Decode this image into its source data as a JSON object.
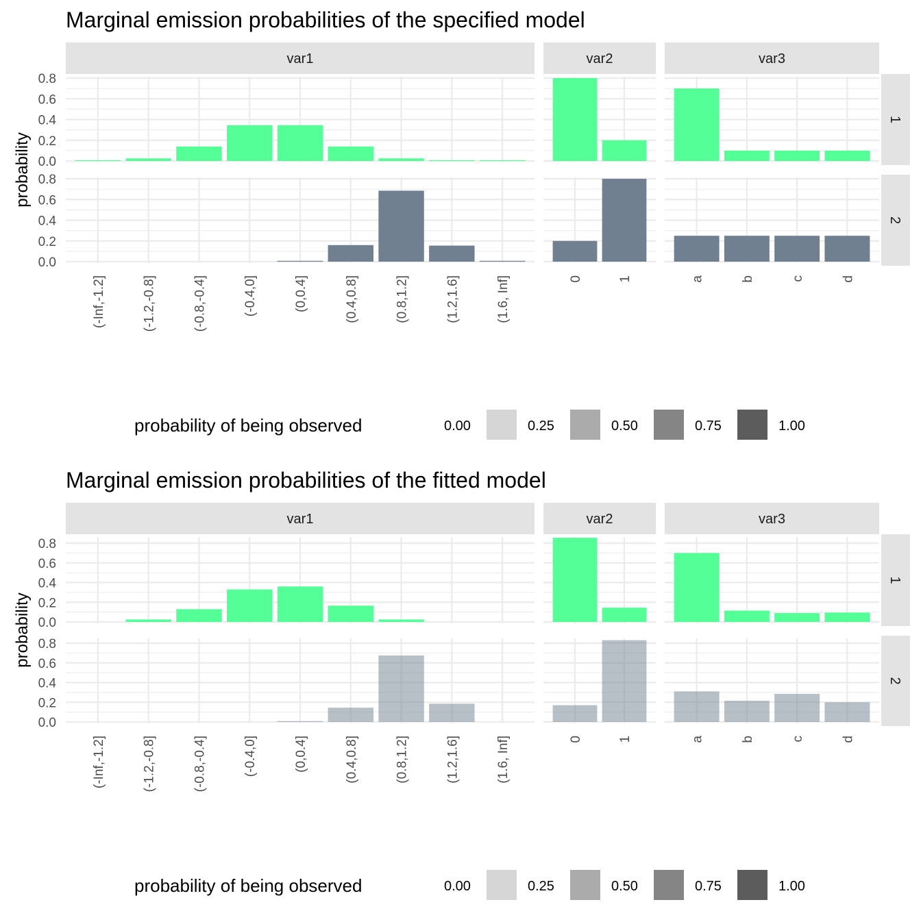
{
  "charts": [
    {
      "title": "Marginal emission probabilities of the specified model",
      "ylabel": "probability",
      "facet_cols": [
        "var1",
        "var2",
        "var3"
      ],
      "facet_rows": [
        "1",
        "2"
      ],
      "legend": {
        "title": "probability of being observed",
        "entries": [
          {
            "label": "0.00",
            "color": "#ffffff"
          },
          {
            "label": "0.25",
            "color": "#d6d6d6"
          },
          {
            "label": "0.50",
            "color": "#ababab"
          },
          {
            "label": "0.75",
            "color": "#858585"
          },
          {
            "label": "1.00",
            "color": "#5c5c5c"
          }
        ]
      }
    },
    {
      "title": "Marginal emission probabilities of the fitted model",
      "ylabel": "probability",
      "facet_cols": [
        "var1",
        "var2",
        "var3"
      ],
      "facet_rows": [
        "1",
        "2"
      ],
      "legend": {
        "title": "probability of being observed",
        "entries": [
          {
            "label": "0.00",
            "color": "#ffffff"
          },
          {
            "label": "0.25",
            "color": "#d6d6d6"
          },
          {
            "label": "0.50",
            "color": "#ababab"
          },
          {
            "label": "0.75",
            "color": "#858585"
          },
          {
            "label": "1.00",
            "color": "#5c5c5c"
          }
        ]
      }
    }
  ],
  "chart_data": [
    {
      "type": "bar",
      "title": "Marginal emission probabilities of the specified model",
      "ylabel": "probability",
      "xlabel": "",
      "ylim": [
        0,
        0.8
      ],
      "y_ticks": [
        "0.0",
        "0.2",
        "0.4",
        "0.6",
        "0.8"
      ],
      "colors": {
        "state_1": "#54ff98",
        "state_2": "#708090"
      },
      "bar_opacity": {
        "state_1": 1.0,
        "state_2": 1.0
      },
      "variables": [
        {
          "name": "var1",
          "categories": [
            "(-Inf,-1.2]",
            "(-1.2,-0.8]",
            "(-0.8,-0.4]",
            "(-0.4,0]",
            "(0,0.4]",
            "(0.4,0.8]",
            "(0.8,1.2]",
            "(1.2,1.6]",
            "(1.6, Inf]"
          ],
          "series": [
            {
              "state": "1",
              "values": [
                0.005,
                0.025,
                0.14,
                0.345,
                0.345,
                0.14,
                0.025,
                0.005,
                0.003
              ]
            },
            {
              "state": "2",
              "values": [
                0.0,
                0.0,
                0.0,
                0.0,
                0.005,
                0.16,
                0.685,
                0.155,
                0.005
              ]
            }
          ]
        },
        {
          "name": "var2",
          "categories": [
            "0",
            "1"
          ],
          "series": [
            {
              "state": "1",
              "values": [
                0.8,
                0.2
              ]
            },
            {
              "state": "2",
              "values": [
                0.2,
                0.8
              ]
            }
          ]
        },
        {
          "name": "var3",
          "categories": [
            "a",
            "b",
            "c",
            "d"
          ],
          "series": [
            {
              "state": "1",
              "values": [
                0.7,
                0.1,
                0.1,
                0.1
              ]
            },
            {
              "state": "2",
              "values": [
                0.25,
                0.25,
                0.25,
                0.25
              ]
            }
          ]
        }
      ]
    },
    {
      "type": "bar",
      "title": "Marginal emission probabilities of the fitted model",
      "ylabel": "probability",
      "xlabel": "",
      "ylim": [
        0,
        0.8
      ],
      "y_ticks": [
        "0.0",
        "0.2",
        "0.4",
        "0.6",
        "0.8"
      ],
      "colors": {
        "state_1": "#54ff98",
        "state_2": "#708090"
      },
      "bar_opacity": {
        "state_1": 1.0,
        "state_2": 0.5
      },
      "variables": [
        {
          "name": "var1",
          "categories": [
            "(-Inf,-1.2]",
            "(-1.2,-0.8]",
            "(-0.8,-0.4]",
            "(-0.4,0]",
            "(0,0.4]",
            "(0.4,0.8]",
            "(0.8,1.2]",
            "(1.2,1.6]",
            "(1.6, Inf]"
          ],
          "series": [
            {
              "state": "1",
              "values": [
                0.0,
                0.025,
                0.13,
                0.33,
                0.36,
                0.165,
                0.025,
                0.0,
                0.0
              ]
            },
            {
              "state": "2",
              "values": [
                0.0,
                0.0,
                0.0,
                0.0,
                0.005,
                0.145,
                0.675,
                0.185,
                0.0
              ]
            }
          ]
        },
        {
          "name": "var2",
          "categories": [
            "0",
            "1"
          ],
          "series": [
            {
              "state": "1",
              "values": [
                0.855,
                0.145
              ]
            },
            {
              "state": "2",
              "values": [
                0.17,
                0.83
              ]
            }
          ]
        },
        {
          "name": "var3",
          "categories": [
            "a",
            "b",
            "c",
            "d"
          ],
          "series": [
            {
              "state": "1",
              "values": [
                0.7,
                0.115,
                0.09,
                0.095
              ]
            },
            {
              "state": "2",
              "values": [
                0.31,
                0.215,
                0.285,
                0.2
              ]
            }
          ]
        }
      ]
    }
  ]
}
